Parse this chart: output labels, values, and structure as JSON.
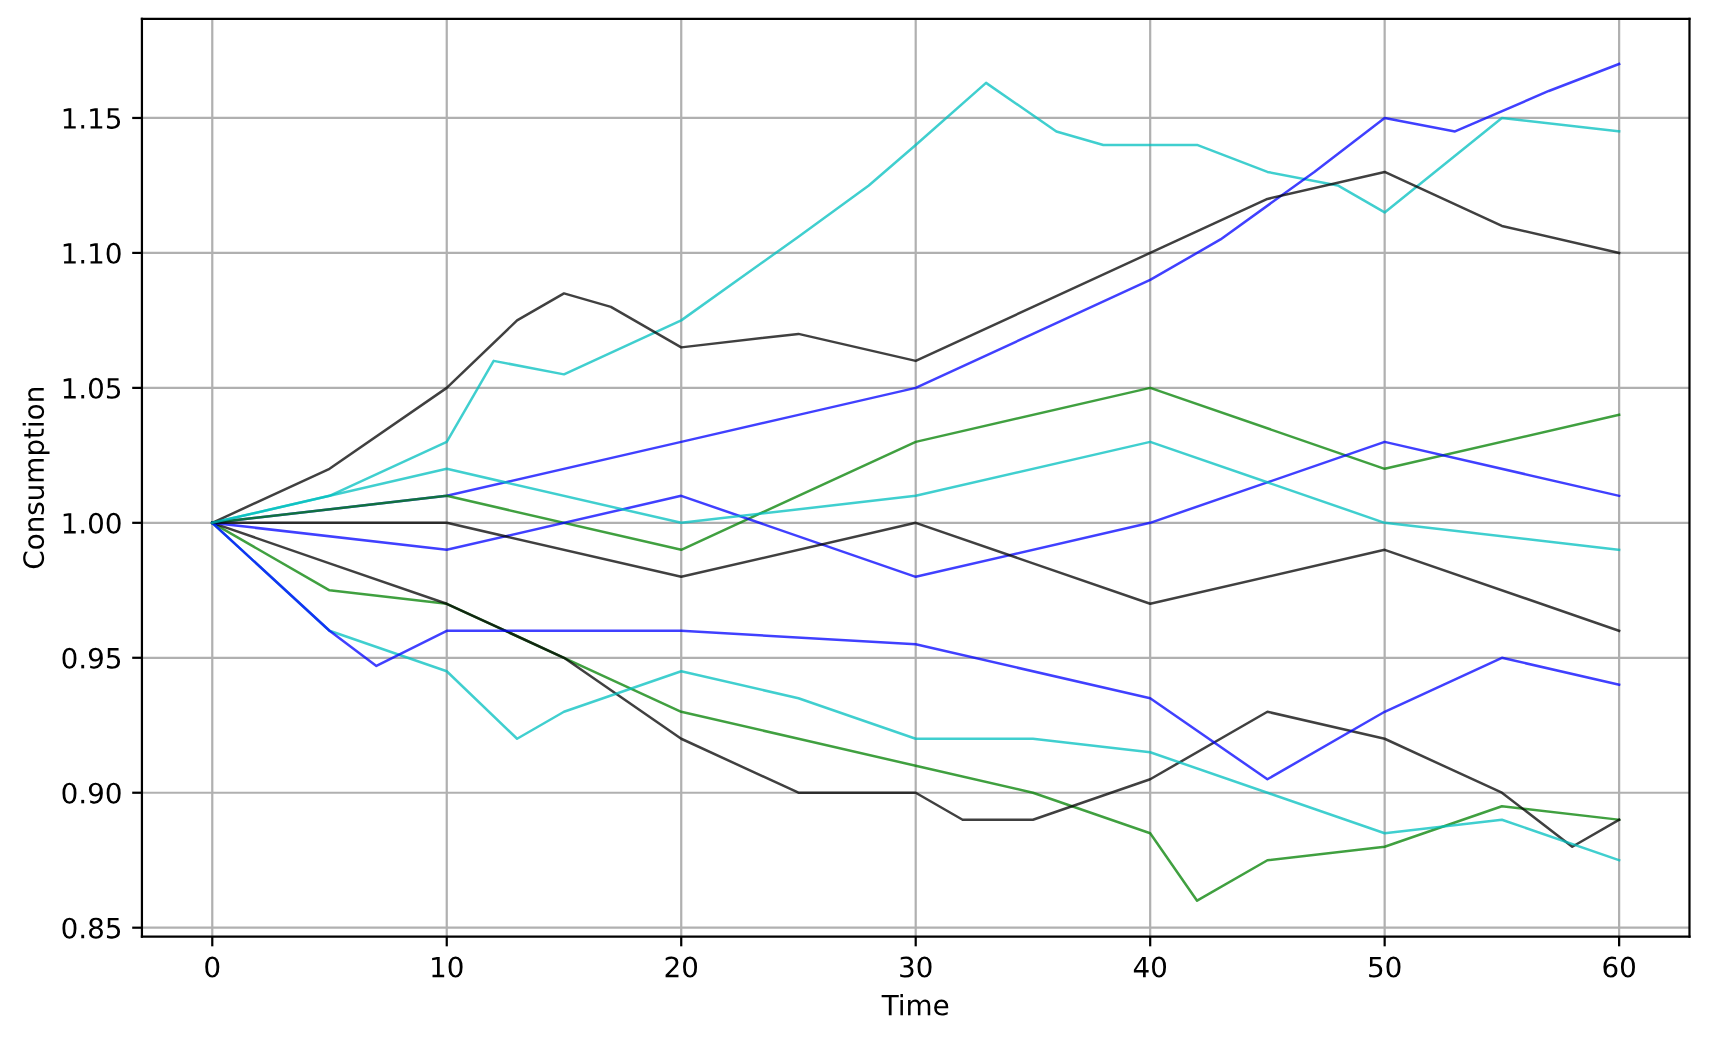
{
  "chart_data": {
    "type": "line",
    "xlabel": "Time",
    "ylabel": "Consumption",
    "xlim": [
      -3,
      63
    ],
    "ylim": [
      0.8467,
      1.1867
    ],
    "xticks": [
      0,
      10,
      20,
      30,
      40,
      50,
      60
    ],
    "yticks": [
      {
        "value": 0.85,
        "label": "0.85"
      },
      {
        "value": 0.9,
        "label": "0.90"
      },
      {
        "value": 0.95,
        "label": "0.95"
      },
      {
        "value": 1.0,
        "label": "1.00"
      },
      {
        "value": 1.05,
        "label": "1.05"
      },
      {
        "value": 1.1,
        "label": "1.10"
      },
      {
        "value": 1.15,
        "label": "1.15"
      }
    ],
    "grid": true,
    "series": [
      {
        "color": "#00bfbf",
        "x": [
          0,
          5,
          10,
          12,
          15,
          20,
          25,
          28,
          30,
          33,
          36,
          38,
          42,
          45,
          48,
          50,
          55,
          60
        ],
        "values": [
          1.0,
          1.01,
          1.03,
          1.06,
          1.055,
          1.075,
          1.106,
          1.125,
          1.14,
          1.163,
          1.145,
          1.14,
          1.14,
          1.13,
          1.125,
          1.115,
          1.15,
          1.145
        ]
      },
      {
        "color": "#0000ff",
        "x": [
          0,
          10,
          20,
          25,
          30,
          35,
          40,
          43,
          47,
          50,
          53,
          57,
          60
        ],
        "values": [
          1.0,
          1.01,
          1.03,
          1.04,
          1.05,
          1.07,
          1.09,
          1.105,
          1.13,
          1.15,
          1.145,
          1.16,
          1.17
        ]
      },
      {
        "color": "#000000",
        "x": [
          0,
          5,
          10,
          13,
          15,
          17,
          20,
          25,
          30,
          35,
          40,
          45,
          50,
          55,
          60
        ],
        "values": [
          1.0,
          1.02,
          1.05,
          1.075,
          1.085,
          1.08,
          1.065,
          1.07,
          1.06,
          1.08,
          1.1,
          1.12,
          1.13,
          1.11,
          1.1
        ]
      },
      {
        "color": "#008000",
        "x": [
          0,
          5,
          10,
          15,
          20,
          25,
          30,
          35,
          40,
          42,
          45,
          50,
          55,
          60
        ],
        "values": [
          1.0,
          0.975,
          0.97,
          0.95,
          0.93,
          0.92,
          0.91,
          0.9,
          0.885,
          0.86,
          0.875,
          0.88,
          0.895,
          0.89
        ]
      },
      {
        "color": "#000000",
        "x": [
          0,
          5,
          10,
          15,
          20,
          25,
          30,
          32,
          35,
          40,
          45,
          50,
          55,
          58,
          60
        ],
        "values": [
          1.0,
          0.985,
          0.97,
          0.95,
          0.92,
          0.9,
          0.9,
          0.89,
          0.89,
          0.905,
          0.93,
          0.92,
          0.9,
          0.88,
          0.89
        ]
      },
      {
        "color": "#00bfbf",
        "x": [
          0,
          5,
          10,
          13,
          15,
          20,
          25,
          30,
          35,
          40,
          45,
          50,
          55,
          60
        ],
        "values": [
          1.0,
          0.96,
          0.945,
          0.92,
          0.93,
          0.945,
          0.935,
          0.92,
          0.92,
          0.915,
          0.9,
          0.885,
          0.89,
          0.875
        ]
      },
      {
        "color": "#0000ff",
        "x": [
          0,
          5,
          7,
          10,
          20,
          30,
          40,
          45,
          50,
          55,
          60
        ],
        "values": [
          1.0,
          0.96,
          0.947,
          0.96,
          0.96,
          0.955,
          0.935,
          0.905,
          0.93,
          0.95,
          0.94
        ]
      },
      {
        "color": "#008000",
        "x": [
          0,
          10,
          20,
          30,
          40,
          50,
          60
        ],
        "values": [
          1.0,
          1.01,
          0.99,
          1.03,
          1.05,
          1.02,
          1.04
        ]
      },
      {
        "color": "#0000ff",
        "x": [
          0,
          10,
          20,
          30,
          40,
          50,
          60
        ],
        "values": [
          1.0,
          0.99,
          1.01,
          0.98,
          1.0,
          1.03,
          1.01
        ]
      },
      {
        "color": "#000000",
        "x": [
          0,
          10,
          20,
          30,
          40,
          50,
          60
        ],
        "values": [
          1.0,
          1.0,
          0.98,
          1.0,
          0.97,
          0.99,
          0.96
        ]
      },
      {
        "color": "#00bfbf",
        "x": [
          0,
          10,
          20,
          30,
          40,
          50,
          60
        ],
        "values": [
          1.0,
          1.02,
          1.0,
          1.01,
          1.03,
          1.0,
          0.99
        ]
      }
    ]
  }
}
